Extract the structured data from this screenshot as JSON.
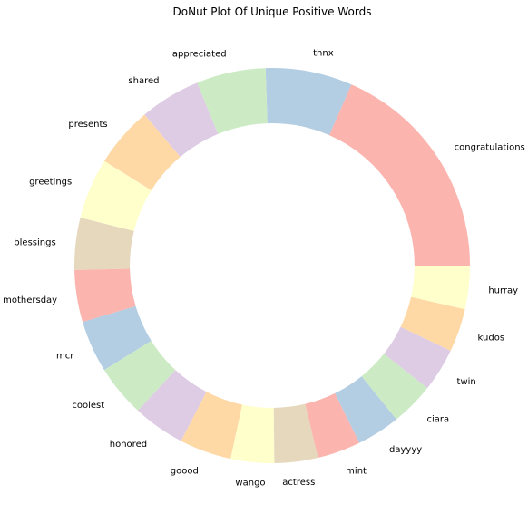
{
  "chart_data": {
    "type": "pie",
    "variant": "donut",
    "title": "DoNut Plot Of Unique Positive Words",
    "start_angle_deg": 0,
    "direction": "counterclockwise",
    "palette": [
      "#fbb4ae",
      "#b3cde3",
      "#ccebc5",
      "#decbe4",
      "#fed9a6",
      "#ffffcc",
      "#e5d8bd"
    ],
    "hole_ratio": 0.72,
    "labels": [
      "congratulations",
      "thnx",
      "appreciated",
      "shared",
      "presents",
      "greetings",
      "blessings",
      "mothersday",
      "mcr",
      "coolest",
      "honored",
      "goood",
      "wango",
      "actress",
      "mint",
      "dayyyy",
      "ciara",
      "twin",
      "kudos",
      "hurray"
    ],
    "values": [
      13,
      5,
      4,
      3.5,
      3.5,
      3.5,
      3,
      3,
      3,
      3,
      3,
      3,
      2.5,
      2.5,
      2.5,
      2.5,
      2.5,
      2.5,
      2.5,
      2.5
    ]
  }
}
